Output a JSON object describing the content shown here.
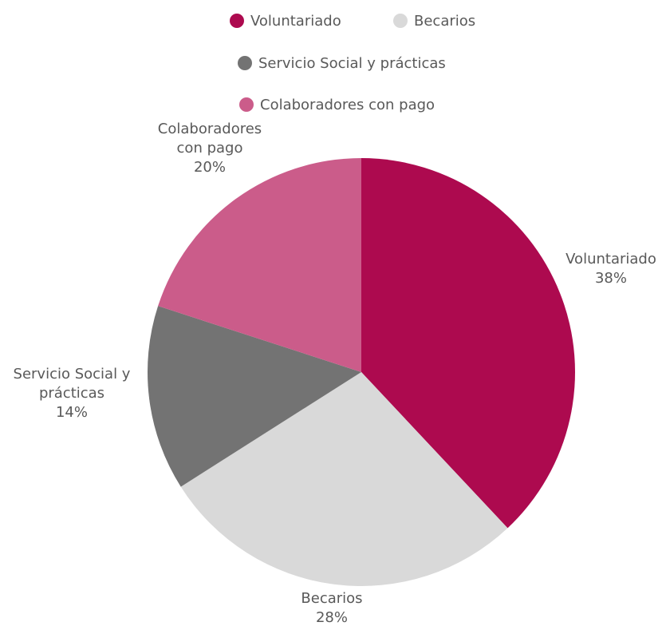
{
  "chart_data": {
    "type": "pie",
    "title": "",
    "legend_position": "top",
    "series": [
      {
        "values": [
          38,
          28,
          14,
          20
        ]
      }
    ],
    "categories": [
      "Voluntariado",
      "Becarios",
      "Servicio Social y prácticas",
      "Colaboradores con pago"
    ],
    "values": [
      38,
      28,
      14,
      20
    ],
    "percent_labels": [
      "38%",
      "28%",
      "14%",
      "20%"
    ],
    "colors": [
      "#ad0a4f",
      "#d9d9d9",
      "#737373",
      "#cb5c8a"
    ],
    "legend": [
      {
        "label": "Voluntariado",
        "color": "#ad0a4f"
      },
      {
        "label": "Becarios",
        "color": "#d9d9d9"
      },
      {
        "label": "Servicio Social y prácticas",
        "color": "#737373"
      },
      {
        "label": "Colaboradores con pago",
        "color": "#cb5c8a"
      }
    ],
    "data_labels": [
      {
        "lines": [
          "Voluntariado"
        ],
        "percent": "38%"
      },
      {
        "lines": [
          "Becarios"
        ],
        "percent": "28%"
      },
      {
        "lines": [
          "Servicio Social y",
          "prácticas"
        ],
        "percent": "14%"
      },
      {
        "lines": [
          "Colaboradores",
          "con pago"
        ],
        "percent": "20%"
      }
    ]
  }
}
